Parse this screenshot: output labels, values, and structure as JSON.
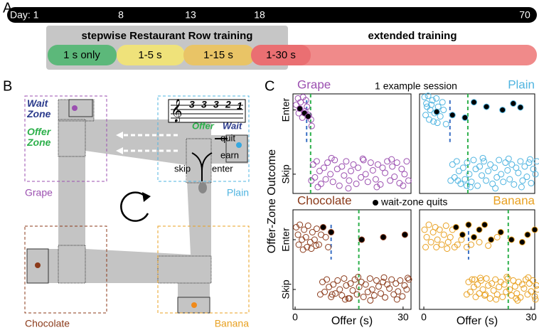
{
  "panel_labels": [
    "A",
    "B",
    "C"
  ],
  "timeline": {
    "days": [
      "Day: 1",
      "8",
      "13",
      "18",
      "70"
    ],
    "stepwise_title": "stepwise Restaurant Row training",
    "extended_title": "extended training",
    "stages": [
      "1 s only",
      "1-5 s",
      "1-15 s",
      "1-30 s"
    ]
  },
  "maze": {
    "wait_zone": "Wait Zone",
    "offer_zone": "Offer Zone",
    "restaurants": [
      "Grape",
      "Plain",
      "Chocolate",
      "Banana"
    ],
    "notes": [
      "3",
      "3",
      "3",
      "2",
      "1"
    ],
    "offer": "Offer",
    "wait": "Wait",
    "quit": "quit",
    "earn": "earn",
    "skip": "skip",
    "enter": "enter"
  },
  "panel_c": {
    "title": "1 example session",
    "ylabel": "Offer-Zone Outcome",
    "legend": "wait-zone quits"
  },
  "chart_data": [
    {
      "type": "scatter",
      "title": "Grape",
      "color": "#9b4fb0",
      "xlim": [
        -0.6,
        32.2
      ],
      "ylim": [
        -0.3,
        1.25
      ],
      "yticks": [
        {
          "value": 1,
          "label": "Enter"
        },
        {
          "value": 0,
          "label": "Skip"
        }
      ],
      "vlines": [
        {
          "x": 3.2,
          "y": [
            0.5,
            1.15
          ],
          "color": "#3a6fc4"
        },
        {
          "x": 4.3,
          "color": "#2db04b"
        }
      ],
      "series": [
        {
          "fill": "none",
          "x": [
            4.5,
            5,
            5.5,
            6,
            6.8,
            7.2,
            8,
            8.5,
            9,
            9.8,
            10.5,
            11,
            11.7,
            12.3,
            13,
            13.6,
            14.2,
            15,
            15.5,
            16.2,
            17,
            17.5,
            18.3,
            19,
            19.6,
            20.2,
            21,
            21.6,
            22.4,
            23,
            23.7,
            24.3,
            25,
            25.6,
            26.4,
            27,
            27.6,
            28.3,
            29,
            29.6,
            30.4,
            31,
            31.5,
            6.3,
            10.1,
            14.8,
            18.8,
            22.7,
            26.8,
            30
          ],
          "y": [
            -0.1,
            0.15,
            -0.05,
            0.2,
            0.05,
            -0.15,
            0.1,
            -0.08,
            0.18,
            0.0,
            -0.12,
            0.22,
            0.08,
            -0.18,
            0.12,
            -0.02,
            0.2,
            -0.1,
            0.05,
            0.15,
            -0.15,
            0.1,
            -0.05,
            0.22,
            0.0,
            -0.12,
            0.18,
            0.06,
            -0.08,
            0.15,
            -0.16,
            0.1,
            0.02,
            0.2,
            -0.1,
            0.12,
            -0.04,
            0.18,
            -0.14,
            0.08,
            0.0,
            0.2,
            -0.1,
            -0.2,
            0.25,
            -0.22,
            0.24,
            -0.2,
            0.23,
            -0.18
          ]
        },
        {
          "fill": "none",
          "x": [
            0.3,
            0.8,
            1.5,
            2.2,
            2.8,
            3.3,
            3.8,
            4.4,
            1.0,
            2.0,
            3.0,
            4.6
          ],
          "y": [
            1.08,
            1.18,
            1.12,
            1.2,
            0.98,
            1.05,
            0.92,
            0.85,
            0.95,
            0.88,
            1.15,
            0.75
          ]
        },
        {
          "fill": "#000",
          "x": [
            1.3,
            2.6,
            3.6
          ],
          "y": [
            1.02,
            0.95,
            0.9
          ]
        }
      ]
    },
    {
      "type": "scatter",
      "title": "Plain",
      "color": "#4fb4e0",
      "xlim": [
        -1.2,
        31
      ],
      "ylim": [
        -0.3,
        1.25
      ],
      "vlines": [
        {
          "x": 7.3,
          "y": [
            0.5,
            1.15
          ],
          "color": "#3a6fc4"
        },
        {
          "x": 12.3,
          "color": "#2db04b"
        }
      ],
      "series": [
        {
          "fill": "none",
          "x": [
            7.5,
            8,
            8.6,
            9.2,
            9.8,
            10.3,
            11,
            11.5,
            12.1,
            12.7,
            13.3,
            13.9,
            14.5,
            15,
            15.6,
            16.2,
            16.8,
            17.4,
            18,
            18.6,
            19.2,
            19.8,
            20.4,
            21,
            21.6,
            22.2,
            22.8,
            23.4,
            24,
            24.6,
            25.2,
            25.8,
            26.4,
            27,
            27.6,
            28.2,
            28.8,
            29.4,
            30,
            30.6,
            31.2,
            31.6,
            9.5,
            13,
            16.5,
            20,
            23.7,
            27.3,
            29.7,
            12
          ],
          "y": [
            -0.1,
            0.15,
            -0.05,
            0.2,
            0.05,
            -0.15,
            0.1,
            -0.08,
            0.18,
            0.0,
            -0.12,
            0.22,
            0.08,
            -0.18,
            0.12,
            -0.02,
            0.2,
            -0.1,
            0.05,
            0.15,
            -0.15,
            0.1,
            -0.05,
            0.22,
            0.0,
            -0.12,
            0.18,
            0.06,
            -0.08,
            0.15,
            -0.16,
            0.1,
            0.02,
            0.2,
            -0.1,
            0.12,
            -0.04,
            0.18,
            -0.14,
            0.08,
            0.0,
            0.2,
            -0.1,
            -0.2,
            0.25,
            -0.22,
            0.24,
            -0.2,
            0.23,
            -0.18
          ]
        },
        {
          "fill": "none",
          "x": [
            0.2,
            0.7,
            1.2,
            1.8,
            2.4,
            3,
            3.5,
            4,
            4.6,
            5.2,
            0.5,
            1.5,
            2.7,
            3.8,
            5.5,
            6.2,
            0.9,
            2.1
          ],
          "y": [
            1.2,
            1.1,
            1.22,
            1.0,
            1.15,
            0.95,
            1.18,
            1.05,
            0.9,
            1.12,
            0.92,
            0.85,
            0.82,
            0.8,
            1.0,
            0.78,
            1.05,
            1.08
          ]
        },
        {
          "fill": "#000",
          "x": [
            3.6,
            8,
            11.5,
            14,
            17.5,
            22,
            25,
            27
          ],
          "y": [
            0.97,
            0.92,
            0.88,
            1.12,
            1.05,
            1.0,
            1.1,
            1.04
          ]
        }
      ]
    },
    {
      "type": "scatter",
      "title": "Chocolate",
      "color": "#8b3a1a",
      "xlim": [
        -0.6,
        32.2
      ],
      "ylim": [
        -0.4,
        1.6
      ],
      "xticks": [
        0,
        30
      ],
      "xlabel": "Offer (s)",
      "yticks": [
        {
          "value": 1,
          "label": "Enter"
        },
        {
          "value": 0,
          "label": "Skip"
        }
      ],
      "vlines": [
        {
          "x": 10,
          "y": [
            0.6,
            1.3
          ],
          "color": "#3a6fc4"
        },
        {
          "x": 17.7,
          "color": "#2db04b"
        }
      ],
      "series": [
        {
          "fill": "none",
          "x": [
            7,
            7.6,
            8.2,
            8.8,
            9.4,
            10,
            10.6,
            11.2,
            11.8,
            12.4,
            13,
            13.6,
            14.2,
            14.8,
            15.4,
            16,
            16.6,
            17.2,
            17.8,
            18.4,
            19,
            19.6,
            20.2,
            20.8,
            21.4,
            22,
            22.6,
            23.2,
            23.8,
            24.4,
            25,
            25.6,
            26.2,
            26.8,
            27.4,
            28,
            28.6,
            29.2,
            29.8,
            30.4,
            31,
            31.6,
            10.3,
            13.9,
            17.5,
            20.9,
            24.7,
            28.3,
            31.3,
            15.1
          ],
          "y": [
            -0.1,
            0.15,
            -0.05,
            0.2,
            0.05,
            -0.15,
            0.1,
            -0.08,
            0.18,
            0.0,
            -0.12,
            0.22,
            0.08,
            -0.18,
            0.12,
            -0.02,
            0.2,
            -0.1,
            0.05,
            0.15,
            -0.15,
            0.1,
            -0.05,
            0.22,
            0.0,
            -0.12,
            0.18,
            0.06,
            -0.08,
            0.15,
            -0.16,
            0.1,
            0.02,
            0.2,
            -0.1,
            0.12,
            -0.04,
            0.18,
            -0.14,
            0.08,
            0.0,
            0.2,
            -0.1,
            -0.2,
            0.25,
            -0.22,
            0.24,
            -0.2,
            0.23,
            -0.18
          ]
        },
        {
          "fill": "none",
          "x": [
            0.3,
            0.8,
            1.3,
            1.9,
            2.5,
            3,
            3.6,
            4.2,
            4.8,
            5.4,
            6,
            6.6,
            7.2,
            8.5,
            9.2,
            1,
            2.2,
            3.3,
            4.5,
            5.8
          ],
          "y": [
            1.25,
            1.1,
            1.3,
            1.0,
            1.2,
            1.05,
            1.28,
            0.95,
            1.15,
            1.0,
            1.22,
            0.9,
            1.1,
            1.05,
            0.85,
            0.9,
            0.8,
            0.85,
            0.82,
            0.88
          ]
        },
        {
          "fill": "#000",
          "x": [
            7.8,
            10,
            18.5,
            24.5,
            30.5
          ],
          "y": [
            1.25,
            1.15,
            1.0,
            1.05,
            1.1
          ]
        }
      ]
    },
    {
      "type": "scatter",
      "title": "Banana",
      "color": "#e8a020",
      "xlim": [
        -1.2,
        31
      ],
      "ylim": [
        -0.4,
        1.6
      ],
      "xticks": [
        0,
        30
      ],
      "xlabel": "Offer (s)",
      "vlines": [
        {
          "x": 12.5,
          "y": [
            0.6,
            1.3
          ],
          "color": "#3a6fc4"
        },
        {
          "x": 23.6,
          "color": "#2db04b"
        }
      ],
      "series": [
        {
          "fill": "none",
          "x": [
            12,
            12.5,
            13,
            13.5,
            14,
            14.5,
            15,
            15.5,
            16,
            16.5,
            17,
            17.5,
            18,
            18.5,
            19,
            19.5,
            20,
            20.5,
            21,
            21.5,
            22,
            22.5,
            23,
            23.5,
            24,
            24.5,
            25,
            25.5,
            26,
            26.5,
            27,
            27.5,
            28,
            28.5,
            29,
            29.5,
            30,
            30.5,
            31,
            31.5,
            31.8,
            14.2,
            17.2,
            20.2,
            23.2,
            26.2,
            29.2,
            31.2,
            15.8,
            25.8
          ],
          "y": [
            -0.1,
            0.15,
            -0.05,
            0.2,
            0.05,
            -0.15,
            0.1,
            -0.08,
            0.18,
            0.0,
            -0.12,
            0.22,
            0.08,
            -0.18,
            0.12,
            -0.02,
            0.2,
            -0.1,
            0.05,
            0.15,
            -0.15,
            0.1,
            -0.05,
            0.22,
            0.0,
            -0.12,
            0.18,
            0.06,
            -0.08,
            0.15,
            -0.16,
            0.1,
            0.02,
            0.2,
            -0.1,
            0.12,
            -0.04,
            0.18,
            -0.14,
            0.08,
            0.0,
            0.2,
            -0.1,
            -0.2,
            0.25,
            -0.22,
            0.24,
            -0.2,
            0.23,
            -0.18
          ]
        },
        {
          "fill": "none",
          "x": [
            0.2,
            0.8,
            1.4,
            2,
            2.6,
            3.2,
            3.8,
            4.4,
            5,
            5.6,
            6.2,
            6.8,
            7.4,
            8,
            8.6,
            9.4,
            10.5,
            12,
            13.2,
            15.5,
            18,
            20.5,
            0.5,
            3.5,
            6.5
          ],
          "y": [
            1.2,
            1.05,
            1.3,
            0.95,
            1.15,
            1.25,
            1.0,
            1.2,
            0.9,
            1.1,
            1.28,
            0.95,
            1.05,
            1.2,
            0.85,
            0.9,
            1.0,
            0.85,
            0.9,
            0.95,
            0.88,
            1.05,
            0.85,
            0.85,
            0.82
          ]
        },
        {
          "fill": "#000",
          "x": [
            9,
            10.8,
            12.5,
            14,
            15.5,
            17,
            18.8,
            21.5,
            24.5,
            27.5,
            29,
            31
          ],
          "y": [
            1.25,
            1.1,
            1.3,
            1.05,
            1.2,
            1.3,
            1.0,
            1.15,
            1.0,
            0.95,
            1.1,
            1.2
          ]
        }
      ]
    }
  ]
}
